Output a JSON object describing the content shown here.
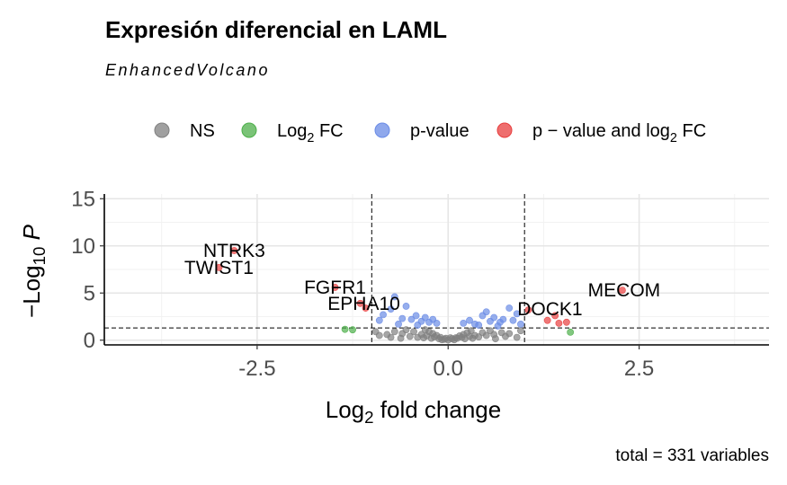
{
  "title": "Expresión diferencial en LAML",
  "subtitle": "EnhancedVolcano",
  "caption": "total = 331 variables",
  "chart_data": {
    "type": "scatter",
    "title": "Expresión diferencial en LAML",
    "subtitle": "EnhancedVolcano",
    "xlabel": "Log2 fold change",
    "ylabel": "-Log10 P",
    "xlim": [
      -4.5,
      4.2
    ],
    "ylim": [
      -0.5,
      15.5
    ],
    "xticks": [
      -2.5,
      0.0,
      2.5
    ],
    "xtick_labels": [
      "-2.5",
      "0.0",
      "2.5"
    ],
    "yticks": [
      0,
      5,
      10,
      15
    ],
    "ytick_labels": [
      "0",
      "5",
      "10",
      "15"
    ],
    "grid": true,
    "legend_position": "top",
    "fc_cutoff": 1.0,
    "p_cutoff_log10": 1.3,
    "colors": {
      "NS": "#808080",
      "Log2FC": "#4daf4a",
      "pvalue": "#6a8be6",
      "both": "#e83e3e"
    },
    "legend": [
      {
        "key": "NS",
        "label": "NS"
      },
      {
        "key": "Log2FC",
        "label": "Log2 FC"
      },
      {
        "key": "pvalue",
        "label": "p-value"
      },
      {
        "key": "both",
        "label": "p − value and log2 FC"
      }
    ],
    "caption": "total = 331 variables",
    "series": [
      {
        "key": "both",
        "points": [
          {
            "x": -2.8,
            "y": 9.5
          },
          {
            "x": -3.0,
            "y": 7.7
          },
          {
            "x": -1.48,
            "y": 5.6
          },
          {
            "x": -1.15,
            "y": 3.9
          },
          {
            "x": -1.08,
            "y": 3.4
          },
          {
            "x": 1.05,
            "y": 3.2
          },
          {
            "x": 1.3,
            "y": 2.1
          },
          {
            "x": 1.4,
            "y": 2.6
          },
          {
            "x": 1.45,
            "y": 1.8
          },
          {
            "x": 1.55,
            "y": 1.9
          },
          {
            "x": 2.28,
            "y": 5.3
          }
        ]
      },
      {
        "key": "Log2FC",
        "points": [
          {
            "x": -1.35,
            "y": 1.15
          },
          {
            "x": -1.25,
            "y": 1.1
          },
          {
            "x": 1.6,
            "y": 0.85
          }
        ]
      },
      {
        "key": "pvalue",
        "points": [
          {
            "x": -0.7,
            "y": 4.6
          },
          {
            "x": -0.85,
            "y": 2.7
          },
          {
            "x": -0.75,
            "y": 3.3
          },
          {
            "x": -0.6,
            "y": 2.3
          },
          {
            "x": -0.55,
            "y": 3.6
          },
          {
            "x": -0.48,
            "y": 2.2
          },
          {
            "x": -0.42,
            "y": 2.6
          },
          {
            "x": -0.35,
            "y": 2.0
          },
          {
            "x": -0.3,
            "y": 2.4
          },
          {
            "x": -0.25,
            "y": 1.9
          },
          {
            "x": -0.2,
            "y": 2.2
          },
          {
            "x": -0.15,
            "y": 1.8
          },
          {
            "x": -0.9,
            "y": 2.1
          },
          {
            "x": -0.65,
            "y": 1.7
          },
          {
            "x": -0.4,
            "y": 1.6
          },
          {
            "x": 0.2,
            "y": 1.8
          },
          {
            "x": 0.28,
            "y": 2.1
          },
          {
            "x": 0.35,
            "y": 1.7
          },
          {
            "x": 0.45,
            "y": 2.6
          },
          {
            "x": 0.55,
            "y": 2.0
          },
          {
            "x": 0.6,
            "y": 2.4
          },
          {
            "x": 0.68,
            "y": 1.9
          },
          {
            "x": 0.72,
            "y": 2.2
          },
          {
            "x": 0.8,
            "y": 3.4
          },
          {
            "x": 0.85,
            "y": 2.1
          },
          {
            "x": 0.9,
            "y": 2.8
          },
          {
            "x": 0.5,
            "y": 3.0
          },
          {
            "x": 0.4,
            "y": 1.6
          },
          {
            "x": 0.65,
            "y": 1.5
          },
          {
            "x": 0.95,
            "y": 1.7
          }
        ]
      },
      {
        "key": "NS",
        "points": [
          {
            "x": -0.05,
            "y": 0.1
          },
          {
            "x": 0.05,
            "y": 0.15
          },
          {
            "x": -0.1,
            "y": 0.3
          },
          {
            "x": 0.1,
            "y": 0.25
          },
          {
            "x": -0.15,
            "y": 0.5
          },
          {
            "x": 0.15,
            "y": 0.45
          },
          {
            "x": -0.2,
            "y": 0.7
          },
          {
            "x": 0.2,
            "y": 0.6
          },
          {
            "x": -0.25,
            "y": 0.9
          },
          {
            "x": 0.25,
            "y": 0.8
          },
          {
            "x": -0.3,
            "y": 1.1
          },
          {
            "x": 0.3,
            "y": 1.0
          },
          {
            "x": -0.35,
            "y": 0.6
          },
          {
            "x": 0.35,
            "y": 0.5
          },
          {
            "x": -0.4,
            "y": 0.3
          },
          {
            "x": 0.4,
            "y": 0.35
          },
          {
            "x": -0.45,
            "y": 0.9
          },
          {
            "x": 0.45,
            "y": 0.8
          },
          {
            "x": -0.5,
            "y": 0.4
          },
          {
            "x": 0.5,
            "y": 0.5
          },
          {
            "x": -0.55,
            "y": 1.1
          },
          {
            "x": 0.55,
            "y": 1.0
          },
          {
            "x": -0.6,
            "y": 0.7
          },
          {
            "x": 0.6,
            "y": 0.6
          },
          {
            "x": -0.7,
            "y": 0.9
          },
          {
            "x": 0.7,
            "y": 0.8
          },
          {
            "x": -0.75,
            "y": 0.3
          },
          {
            "x": 0.75,
            "y": 0.4
          },
          {
            "x": -0.8,
            "y": 0.6
          },
          {
            "x": 0.8,
            "y": 0.7
          },
          {
            "x": -0.9,
            "y": 0.5
          },
          {
            "x": 0.9,
            "y": 0.3
          },
          {
            "x": -0.95,
            "y": 0.9
          },
          {
            "x": 0.95,
            "y": 1.0
          },
          {
            "x": -0.08,
            "y": 0.05
          },
          {
            "x": 0.08,
            "y": 0.05
          },
          {
            "x": -0.12,
            "y": 0.15
          },
          {
            "x": 0.12,
            "y": 0.2
          },
          {
            "x": -0.18,
            "y": 0.35
          },
          {
            "x": 0.18,
            "y": 0.3
          },
          {
            "x": -0.22,
            "y": 0.2
          },
          {
            "x": 0.22,
            "y": 0.15
          },
          {
            "x": -0.28,
            "y": 0.45
          },
          {
            "x": 0.28,
            "y": 0.4
          },
          {
            "x": 0.0,
            "y": 0.02
          },
          {
            "x": -0.03,
            "y": 0.2
          },
          {
            "x": 0.03,
            "y": 0.25
          },
          {
            "x": -0.32,
            "y": 0.25
          },
          {
            "x": 0.32,
            "y": 0.2
          },
          {
            "x": -0.62,
            "y": 0.2
          },
          {
            "x": 0.62,
            "y": 0.15
          }
        ]
      }
    ],
    "labels": [
      {
        "text": "NTRK3",
        "x": -2.8,
        "y": 9.5
      },
      {
        "text": "TWIST1",
        "x": -3.0,
        "y": 7.7
      },
      {
        "text": "FGFR1",
        "x": -1.48,
        "y": 5.6
      },
      {
        "text": "EPHA10",
        "x": -1.15,
        "y": 3.9
      },
      {
        "text": "DOCK1",
        "x": 1.05,
        "y": 3.2
      },
      {
        "text": "MECOM",
        "x": 2.28,
        "y": 5.3
      }
    ]
  }
}
